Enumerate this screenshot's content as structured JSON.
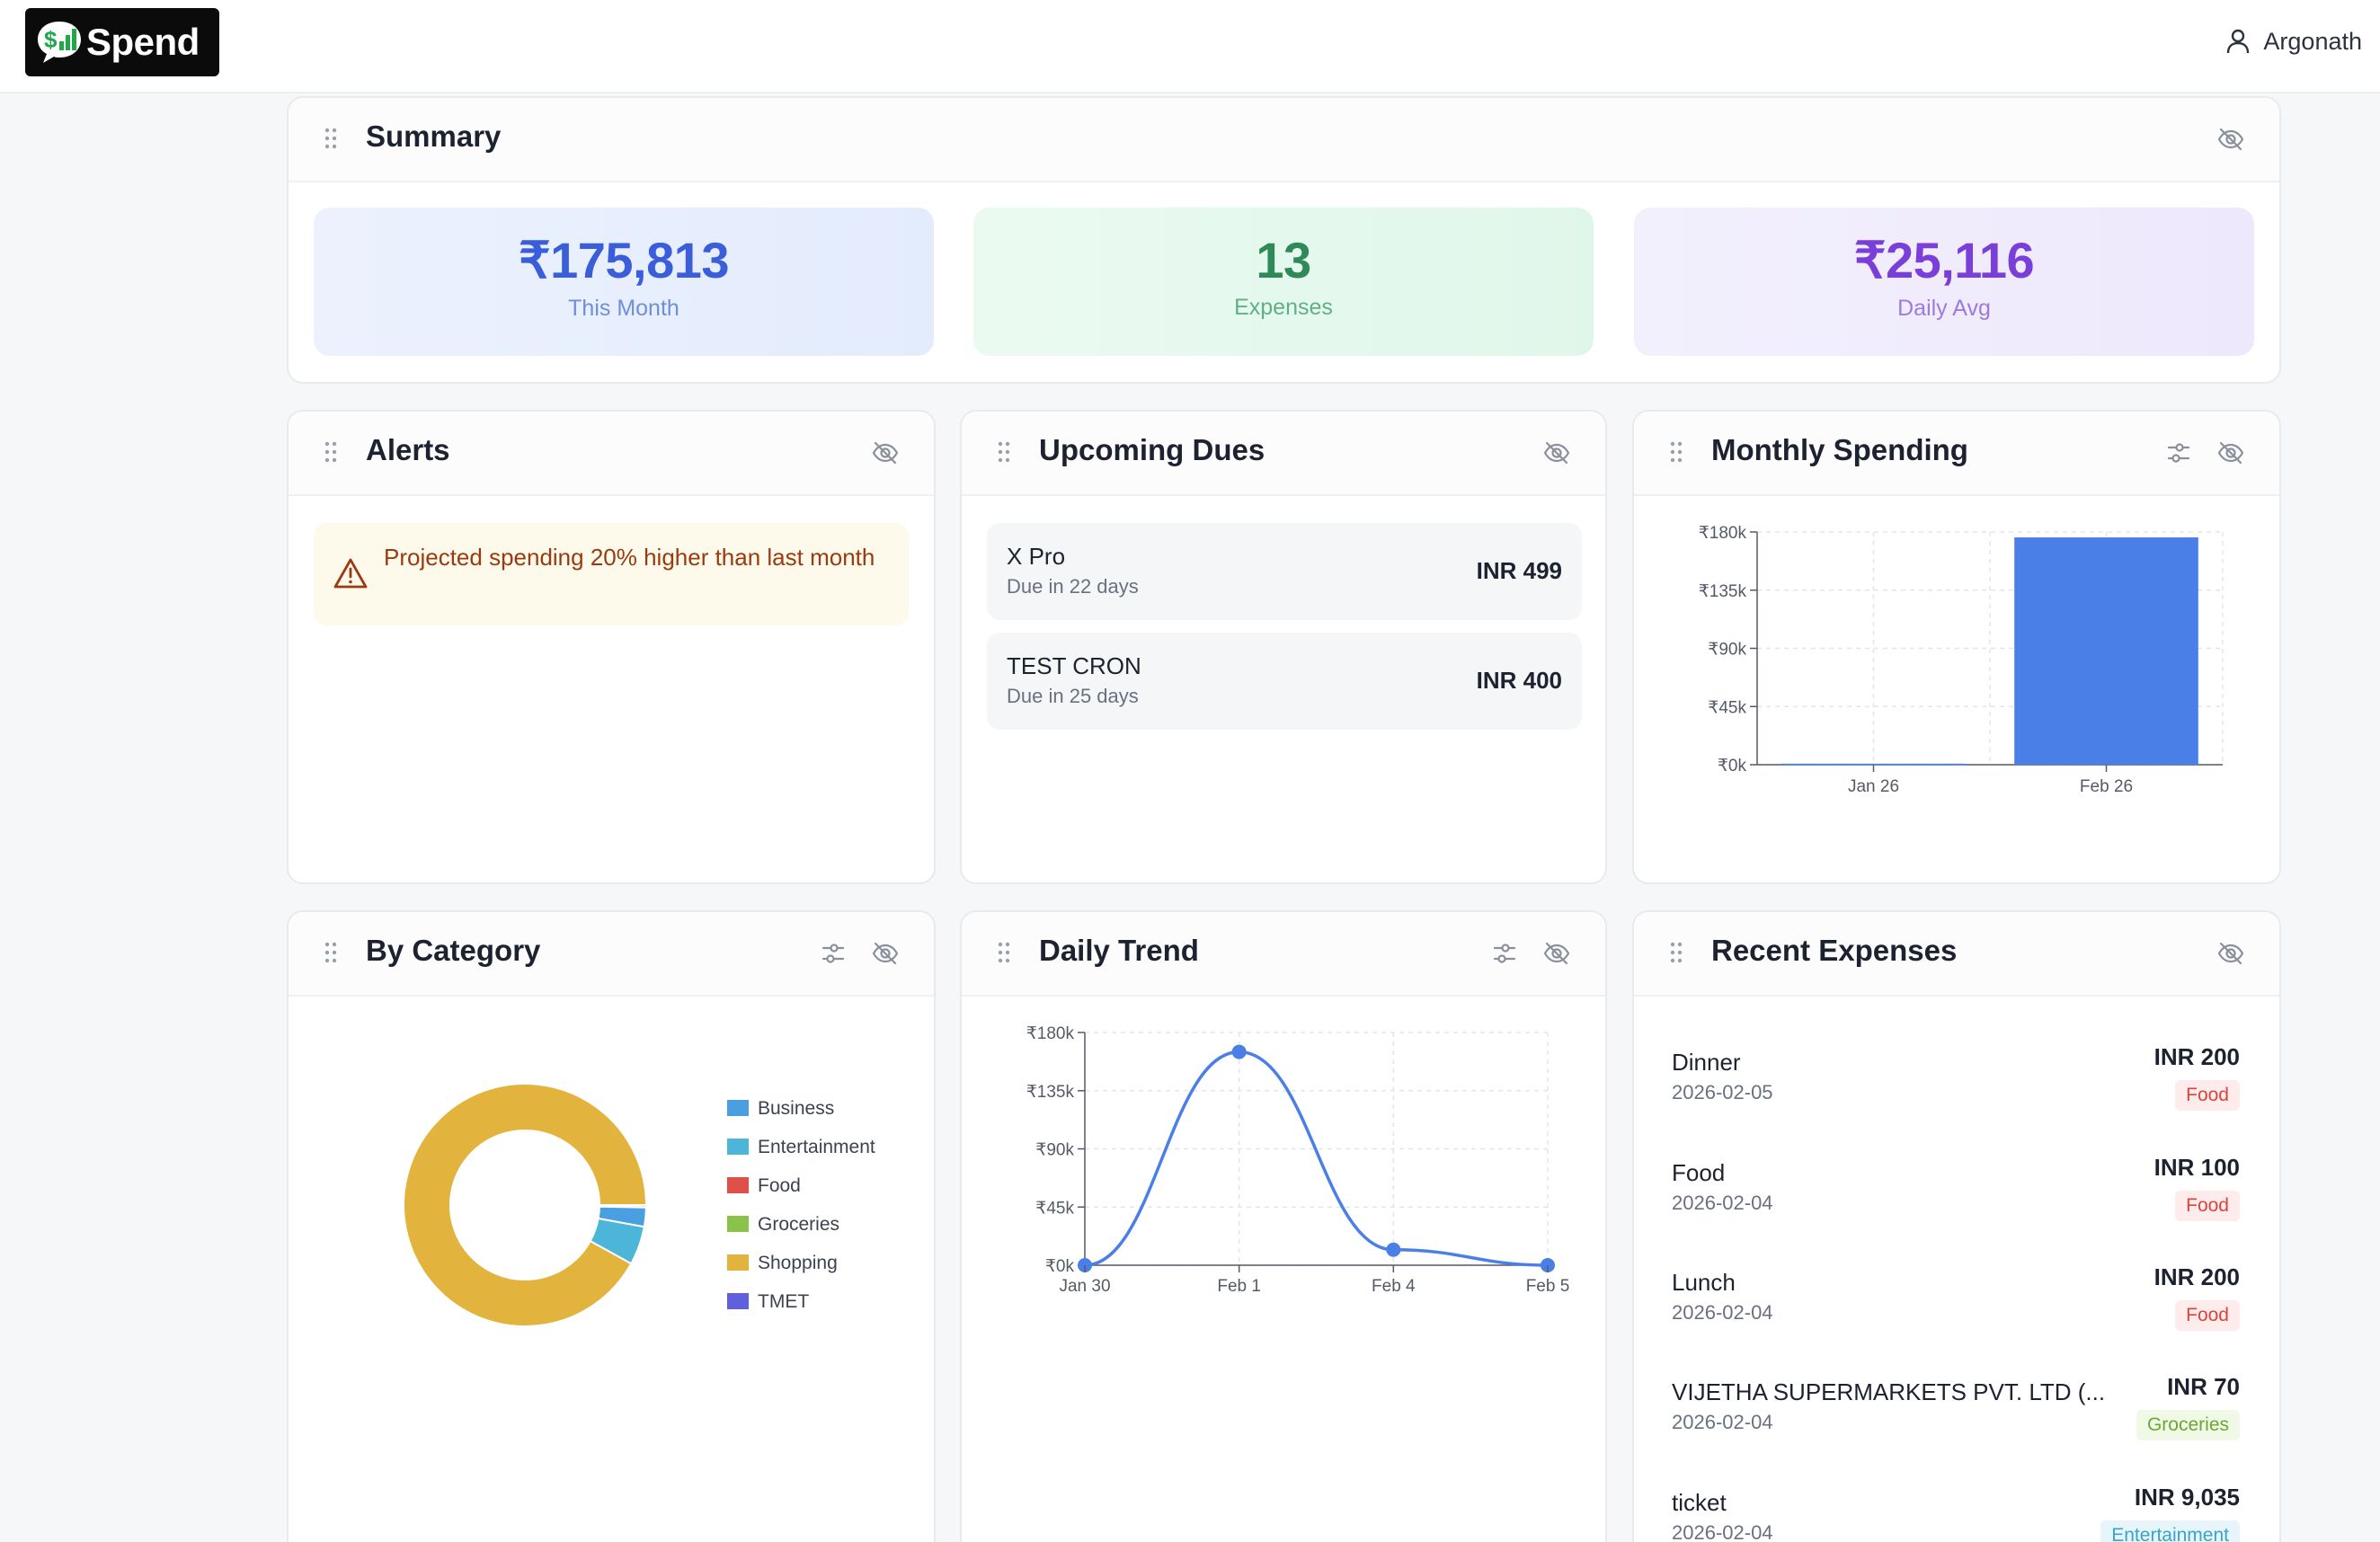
{
  "app": {
    "logo_text": "Spend",
    "user_name": "Argonath"
  },
  "colors": {
    "accent": "#4a7fe8",
    "alert_bg": "#fefaeb",
    "alert_text": "#9a3a10"
  },
  "summary": {
    "title": "Summary",
    "stats": [
      {
        "value": "₹175,813",
        "label": "This Month",
        "color": "#3a5ed9"
      },
      {
        "value": "13",
        "label": "Expenses",
        "color": "#2f8a5a"
      },
      {
        "value": "₹25,116",
        "label": "Daily Avg",
        "color": "#7a3fd9"
      }
    ]
  },
  "alerts": {
    "title": "Alerts",
    "items": [
      {
        "text": "Projected spending 20% higher than last month"
      }
    ]
  },
  "upcoming_dues": {
    "title": "Upcoming Dues",
    "items": [
      {
        "name": "X Pro",
        "due": "Due in 22 days",
        "amount": "INR 499"
      },
      {
        "name": "TEST CRON",
        "due": "Due in 25 days",
        "amount": "INR 400"
      }
    ]
  },
  "monthly_spending": {
    "title": "Monthly Spending"
  },
  "by_category": {
    "title": "By Category"
  },
  "daily_trend": {
    "title": "Daily Trend"
  },
  "recent_expenses": {
    "title": "Recent Expenses",
    "items": [
      {
        "name": "Dinner",
        "date": "2026-02-05",
        "amount": "INR 200",
        "category": "Food"
      },
      {
        "name": "Food",
        "date": "2026-02-04",
        "amount": "INR 100",
        "category": "Food"
      },
      {
        "name": "Lunch",
        "date": "2026-02-04",
        "amount": "INR 200",
        "category": "Food"
      },
      {
        "name": "VIJETHA SUPERMARKETS PVT. LTD (...",
        "date": "2026-02-04",
        "amount": "INR 70",
        "category": "Groceries"
      },
      {
        "name": "ticket",
        "date": "2026-02-04",
        "amount": "INR 9,035",
        "category": "Entertainment"
      }
    ]
  },
  "chart_data": [
    {
      "type": "bar",
      "title": "Monthly Spending",
      "categories": [
        "Jan 26",
        "Feb 26"
      ],
      "values": [
        800,
        175813
      ],
      "y_ticks": [
        "₹0k",
        "₹45k",
        "₹90k",
        "₹135k",
        "₹180k"
      ],
      "ylim": [
        0,
        180000
      ],
      "grid": true,
      "color": "#4a7fe8"
    },
    {
      "type": "pie",
      "title": "By Category",
      "labels": [
        "Business",
        "Entertainment",
        "Food",
        "Groceries",
        "Shopping",
        "TMET"
      ],
      "values": [
        4500,
        9035,
        500,
        70,
        161708,
        0
      ],
      "colors": [
        "#4a9fe0",
        "#4cb5d8",
        "#e0504a",
        "#8bc34a",
        "#e2b43e",
        "#5f5fe0"
      ],
      "legend": "right"
    },
    {
      "type": "line",
      "title": "Daily Trend",
      "x": [
        "Jan 30",
        "Feb 1",
        "Feb 4",
        "Feb 5"
      ],
      "values": [
        0,
        165000,
        12000,
        0
      ],
      "y_ticks": [
        "₹0k",
        "₹45k",
        "₹90k",
        "₹135k",
        "₹180k"
      ],
      "ylim": [
        0,
        180000
      ],
      "grid": true,
      "color": "#4a7fe8"
    }
  ]
}
